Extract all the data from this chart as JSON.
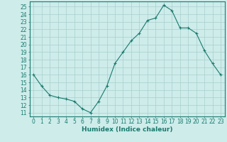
{
  "x": [
    0,
    1,
    2,
    3,
    4,
    5,
    6,
    7,
    8,
    9,
    10,
    11,
    12,
    13,
    14,
    15,
    16,
    17,
    18,
    19,
    20,
    21,
    22,
    23
  ],
  "y": [
    16,
    14.5,
    13.3,
    13.0,
    12.8,
    12.5,
    11.5,
    11.0,
    12.5,
    14.5,
    17.5,
    19.0,
    20.5,
    21.5,
    23.2,
    23.5,
    25.2,
    24.5,
    22.2,
    22.2,
    21.5,
    19.2,
    17.5,
    16.0
  ],
  "xlabel": "Humidex (Indice chaleur)",
  "xlim": [
    -0.5,
    23.5
  ],
  "ylim": [
    10.5,
    25.7
  ],
  "yticks": [
    11,
    12,
    13,
    14,
    15,
    16,
    17,
    18,
    19,
    20,
    21,
    22,
    23,
    24,
    25
  ],
  "xticks": [
    0,
    1,
    2,
    3,
    4,
    5,
    6,
    7,
    8,
    9,
    10,
    11,
    12,
    13,
    14,
    15,
    16,
    17,
    18,
    19,
    20,
    21,
    22,
    23
  ],
  "line_color": "#1a7a6e",
  "marker": "+",
  "bg_color": "#cdecea",
  "grid_color": "#a8cece",
  "axis_color": "#1a7a6e",
  "label_color": "#1a7a6e",
  "tick_fontsize": 5.5,
  "xlabel_fontsize": 6.5
}
